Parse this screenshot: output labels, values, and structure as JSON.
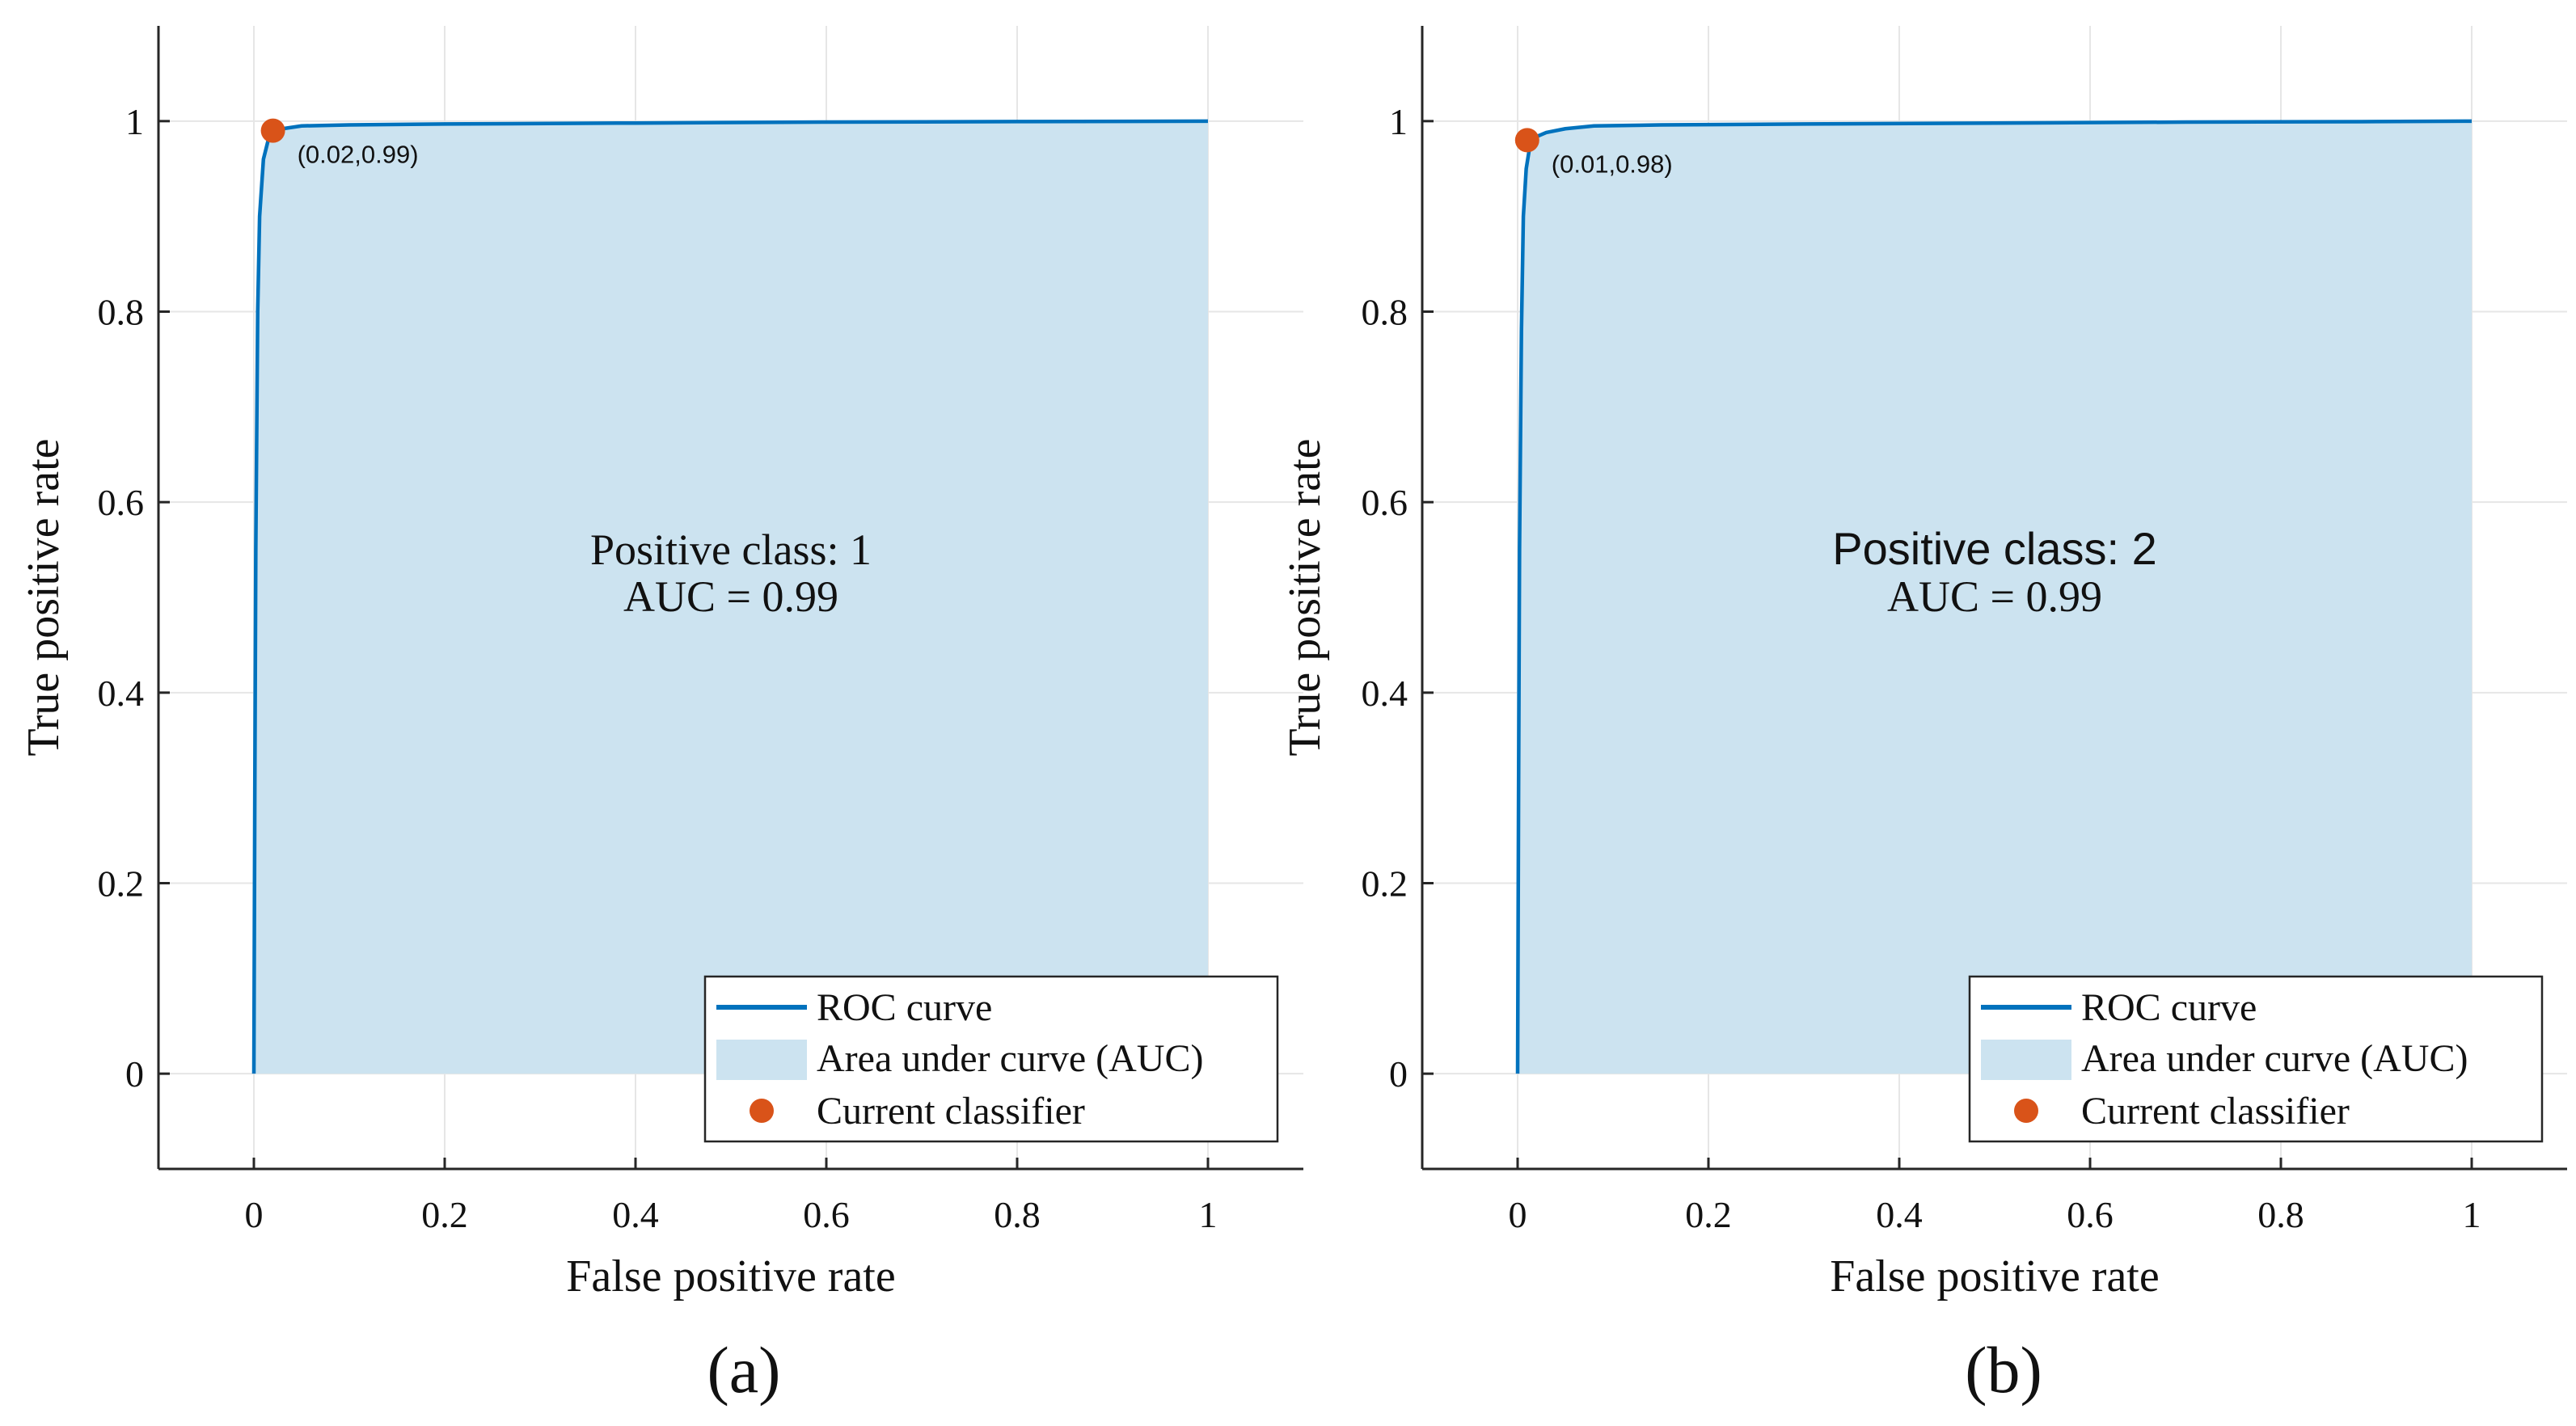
{
  "chart_data": [
    {
      "type": "line",
      "panel_label": "(a)",
      "title_line1": "Positive class: 1",
      "title_line2": "AUC = 0.99",
      "xlabel": "False positive rate",
      "ylabel": "True positive rate",
      "xlim": [
        -0.1,
        1.1
      ],
      "ylim": [
        -0.1,
        1.1
      ],
      "xticks": [
        0,
        0.2,
        0.4,
        0.6,
        0.8,
        1
      ],
      "xtick_labels": [
        "0",
        "0.2",
        "0.4",
        "0.6",
        "0.8",
        "1"
      ],
      "yticks": [
        0,
        0.2,
        0.4,
        0.6,
        0.8,
        1
      ],
      "ytick_labels": [
        "0",
        "0.2",
        "0.4",
        "0.6",
        "0.8",
        "1"
      ],
      "grid": true,
      "series": [
        {
          "name": "ROC curve",
          "x": [
            0,
            0.001,
            0.002,
            0.004,
            0.006,
            0.01,
            0.015,
            0.02,
            0.03,
            0.05,
            0.1,
            0.2,
            0.4,
            0.6,
            0.8,
            1.0
          ],
          "y": [
            0,
            0.3,
            0.55,
            0.8,
            0.9,
            0.96,
            0.98,
            0.987,
            0.992,
            0.995,
            0.996,
            0.997,
            0.998,
            0.999,
            0.9995,
            1.0
          ]
        }
      ],
      "auc": 0.99,
      "current_classifier": {
        "x": 0.02,
        "y": 0.99,
        "label": "(0.02,0.99)"
      },
      "legend": {
        "position": "bottom-right",
        "entries": [
          "ROC curve",
          "Area under curve (AUC)",
          "Current classifier"
        ]
      }
    },
    {
      "type": "line",
      "panel_label": "(b)",
      "title_line1": "Positive class: 2",
      "title_line2": "AUC = 0.99",
      "xlabel": "False positive rate",
      "ylabel": "True positive rate",
      "xlim": [
        -0.1,
        1.1
      ],
      "ylim": [
        -0.1,
        1.1
      ],
      "xticks": [
        0,
        0.2,
        0.4,
        0.6,
        0.8,
        1
      ],
      "xtick_labels": [
        "0",
        "0.2",
        "0.4",
        "0.6",
        "0.8",
        "1"
      ],
      "yticks": [
        0,
        0.2,
        0.4,
        0.6,
        0.8,
        1
      ],
      "ytick_labels": [
        "0",
        "0.2",
        "0.4",
        "0.6",
        "0.8",
        "1"
      ],
      "grid": true,
      "series": [
        {
          "name": "ROC curve",
          "x": [
            0,
            0.001,
            0.002,
            0.004,
            0.006,
            0.009,
            0.013,
            0.018,
            0.03,
            0.05,
            0.08,
            0.15,
            0.3,
            0.5,
            0.7,
            0.9,
            1.0
          ],
          "y": [
            0,
            0.3,
            0.55,
            0.78,
            0.9,
            0.95,
            0.975,
            0.983,
            0.988,
            0.992,
            0.995,
            0.996,
            0.997,
            0.998,
            0.999,
            0.9995,
            1.0
          ]
        }
      ],
      "auc": 0.99,
      "current_classifier": {
        "x": 0.01,
        "y": 0.98,
        "label": "(0.01,0.98)"
      },
      "legend": {
        "position": "bottom-right",
        "entries": [
          "ROC curve",
          "Area under curve (AUC)",
          "Current classifier"
        ]
      }
    }
  ],
  "colors": {
    "roc_line": "#0072BD",
    "auc_fill": "#CCE3F0",
    "classifier_marker": "#D95319",
    "grid": "#E6E6E6",
    "axis": "#262626"
  }
}
